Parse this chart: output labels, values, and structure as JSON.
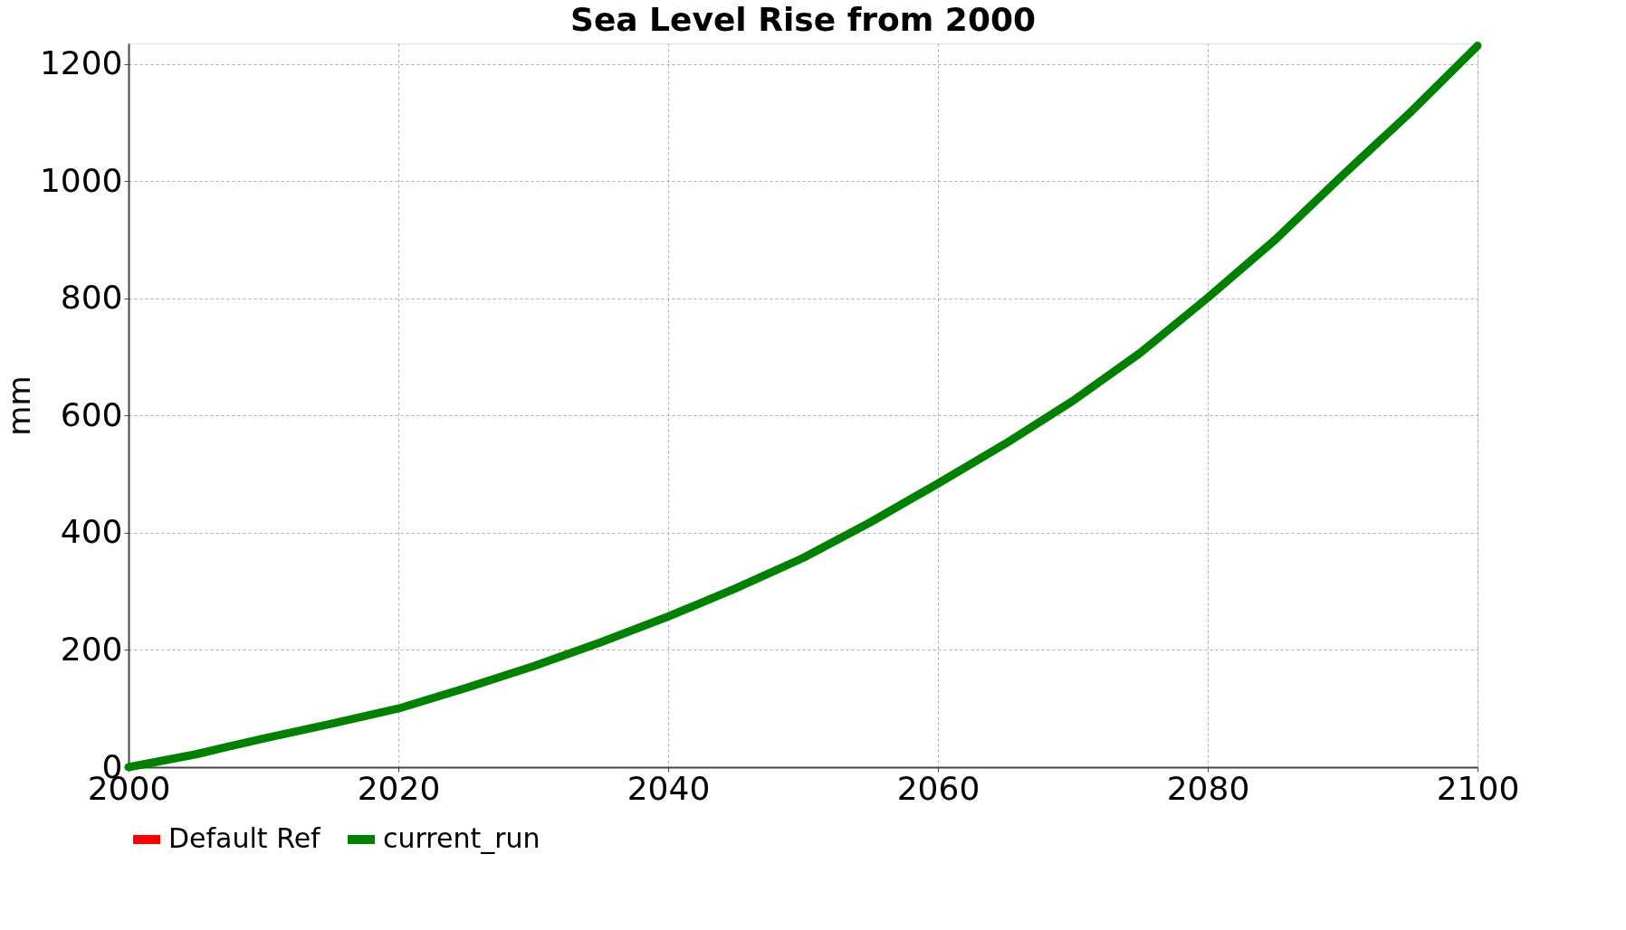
{
  "chart_data": {
    "type": "line",
    "title": "Sea Level Rise from 2000",
    "ylabel": "mm",
    "x": [
      2000,
      2005,
      2010,
      2015,
      2020,
      2025,
      2030,
      2035,
      2040,
      2045,
      2050,
      2055,
      2060,
      2065,
      2070,
      2075,
      2080,
      2085,
      2090,
      2095,
      2100
    ],
    "series": [
      {
        "name": "Default Ref",
        "color": "#ff0000",
        "values": [
          null,
          null,
          null,
          null,
          null,
          null,
          null,
          null,
          null,
          null,
          null,
          null,
          null,
          null,
          null,
          null,
          null,
          null,
          null,
          null,
          null
        ]
      },
      {
        "name": "current_run",
        "color": "#008000",
        "values": [
          0,
          22,
          49,
          74,
          100,
          135,
          172,
          213,
          257,
          305,
          357,
          418,
          484,
          552,
          625,
          707,
          801,
          900,
          1010,
          1117,
          1231
        ]
      }
    ],
    "xlim": [
      2000,
      2100
    ],
    "xticks": [
      2000,
      2020,
      2040,
      2060,
      2080,
      2100
    ],
    "ylim": [
      0,
      1235
    ],
    "yticks": [
      0,
      200,
      400,
      600,
      800,
      1000,
      1200
    ],
    "grid": true,
    "legend": "bottom",
    "line_style": "solid",
    "marker": "none"
  }
}
